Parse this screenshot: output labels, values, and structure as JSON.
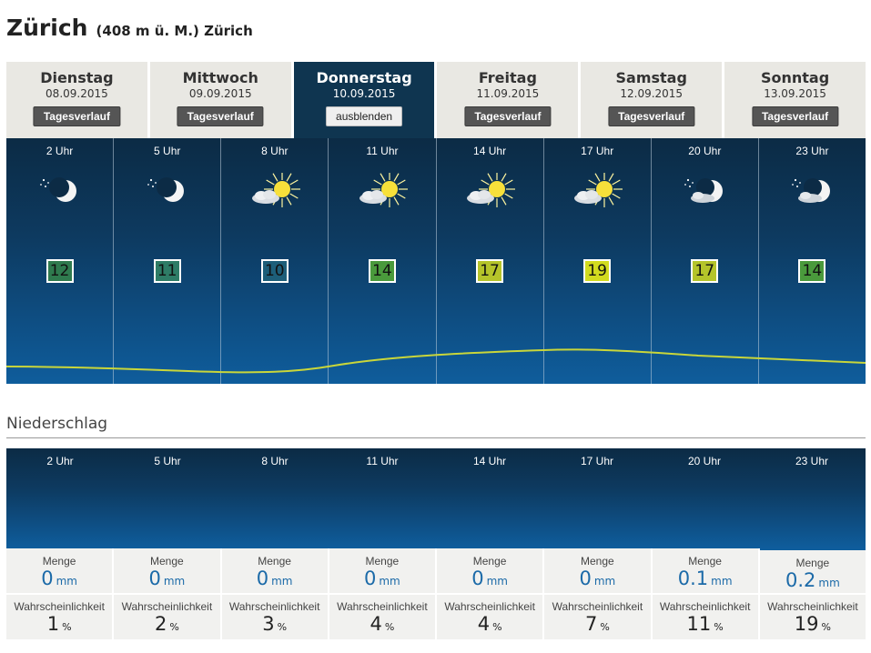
{
  "location": {
    "name": "Zürich",
    "meta": "(408 m ü. M.) Zürich"
  },
  "days": [
    {
      "name": "Dienstag",
      "date": "08.09.2015",
      "button": "Tagesverlauf",
      "active": false
    },
    {
      "name": "Mittwoch",
      "date": "09.09.2015",
      "button": "Tagesverlauf",
      "active": false
    },
    {
      "name": "Donnerstag",
      "date": "10.09.2015",
      "button": "ausblenden",
      "active": true
    },
    {
      "name": "Freitag",
      "date": "11.09.2015",
      "button": "Tagesverlauf",
      "active": false
    },
    {
      "name": "Samstag",
      "date": "12.09.2015",
      "button": "Tagesverlauf",
      "active": false
    },
    {
      "name": "Sonntag",
      "date": "13.09.2015",
      "button": "Tagesverlauf",
      "active": false
    }
  ],
  "hours": [
    {
      "label": "2 Uhr",
      "icon": "moon-clear-icon",
      "temp": "12",
      "temp_color": "#2f7a4e"
    },
    {
      "label": "5 Uhr",
      "icon": "moon-clear-icon",
      "temp": "11",
      "temp_color": "#2e7c66"
    },
    {
      "label": "8 Uhr",
      "icon": "sun-cloud-icon",
      "temp": "10",
      "temp_color": "#1d5e79"
    },
    {
      "label": "11 Uhr",
      "icon": "sun-cloud-icon",
      "temp": "14",
      "temp_color": "#4a9a3c"
    },
    {
      "label": "14 Uhr",
      "icon": "sun-cloud-icon",
      "temp": "17",
      "temp_color": "#b5c42a"
    },
    {
      "label": "17 Uhr",
      "icon": "sun-cloud-icon",
      "temp": "19",
      "temp_color": "#d2db1f"
    },
    {
      "label": "20 Uhr",
      "icon": "moon-cloud-icon",
      "temp": "17",
      "temp_color": "#b5c42a"
    },
    {
      "label": "23 Uhr",
      "icon": "moon-cloud-icon",
      "temp": "14",
      "temp_color": "#4a9a3c"
    }
  ],
  "precipitation": {
    "title": "Niederschlag",
    "menge_label": "Menge",
    "menge_unit": "mm",
    "prob_label": "Wahrscheinlichkeit",
    "prob_unit": "%",
    "items": [
      {
        "hour": "2 Uhr",
        "menge": "0",
        "prob": "1"
      },
      {
        "hour": "5 Uhr",
        "menge": "0",
        "prob": "2"
      },
      {
        "hour": "8 Uhr",
        "menge": "0",
        "prob": "3"
      },
      {
        "hour": "11 Uhr",
        "menge": "0",
        "prob": "4"
      },
      {
        "hour": "14 Uhr",
        "menge": "0",
        "prob": "4"
      },
      {
        "hour": "17 Uhr",
        "menge": "0",
        "prob": "7"
      },
      {
        "hour": "20 Uhr",
        "menge": "0.1",
        "prob": "11"
      },
      {
        "hour": "23 Uhr",
        "menge": "0.2",
        "prob": "19"
      }
    ]
  }
}
